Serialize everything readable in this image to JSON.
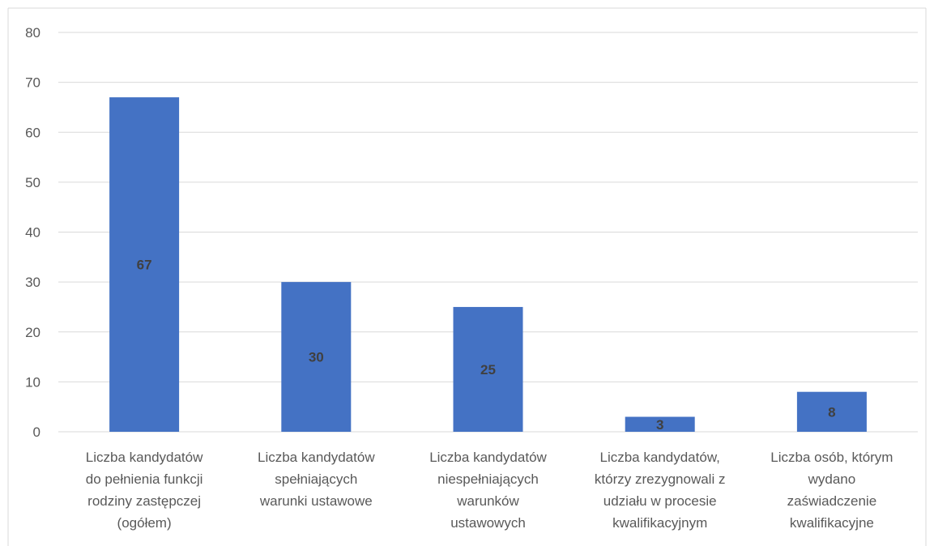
{
  "chart_data": {
    "type": "bar",
    "categories": [
      [
        "Liczba kandydatów",
        "do pełnienia funkcji",
        "rodziny zastępczej",
        "(ogółem)"
      ],
      [
        "Liczba kandydatów",
        "spełniających",
        "warunki ustawowe"
      ],
      [
        "Liczba kandydatów",
        "niespełniających",
        "warunków",
        "ustawowych"
      ],
      [
        "Liczba kandydatów,",
        "którzy zrezygnowali z",
        "udziału w procesie",
        "kwalifikacyjnym"
      ],
      [
        "Liczba osób, którym",
        "wydano",
        "zaświadczenie",
        "kwalifikacyjne"
      ]
    ],
    "values": [
      67,
      30,
      25,
      3,
      8
    ],
    "data_labels": [
      "67",
      "30",
      "25",
      "3",
      "8"
    ],
    "y_ticks": [
      "0",
      "10",
      "20",
      "30",
      "40",
      "50",
      "60",
      "70",
      "80"
    ],
    "ylim": [
      0,
      80
    ],
    "grid": true,
    "bar_color": "#4472c4",
    "grid_color": "#d9d9d9"
  }
}
